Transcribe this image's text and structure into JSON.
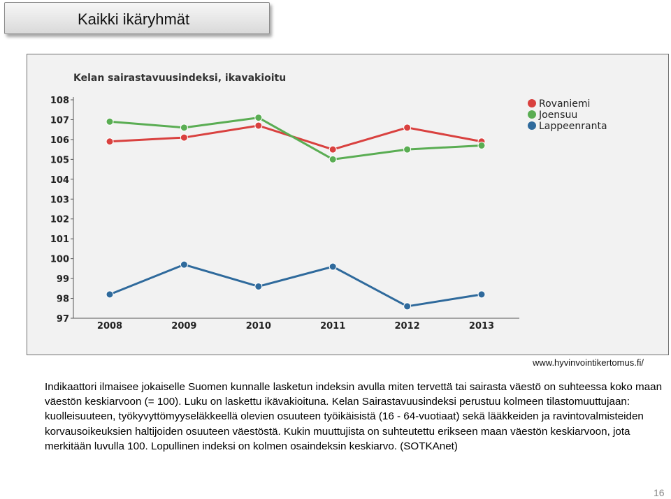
{
  "slide": {
    "title": "Kaikki ikäryhmät",
    "source": "www.hyvinvointikertomus.fi/",
    "description": "Indikaattori ilmaisee jokaiselle Suomen kunnalle lasketun indeksin avulla miten tervettä tai sairasta väestö on suhteessa koko maan väestön keskiarvoon (= 100). Luku on laskettu ikävakioituna. Kelan Sairastavuusindeksi perustuu kolmeen tilastomuuttujaan: kuolleisuuteen, työkyvyttömyyseläkkeellä olevien osuuteen työikäisistä (16 - 64-vuotiaat) sekä lääkkeiden ja ravintovalmisteiden korvausoikeuksien haltijoiden osuuteen väestöstä. Kukin muuttujista on suhteutettu erikseen maan väestön keskiarvoon, jota merkitään luvulla 100. Lopullinen indeksi on kolmen osaindeksin keskiarvo. (SOTKAnet)",
    "page_number": "16"
  },
  "chart_data": {
    "type": "line",
    "title": "Kelan sairastavuusindeksi, ikavakioitu",
    "xlabel": "",
    "ylabel": "",
    "categories": [
      "2008",
      "2009",
      "2010",
      "2011",
      "2012",
      "2013"
    ],
    "ylim": [
      97,
      108
    ],
    "yticks": [
      "97",
      "98",
      "99",
      "100",
      "101",
      "102",
      "103",
      "104",
      "105",
      "106",
      "107",
      "108"
    ],
    "grid": false,
    "legend_position": "top-right",
    "series": [
      {
        "name": "Rovaniemi",
        "color": "#d9413f",
        "values": [
          105.9,
          106.1,
          106.7,
          105.5,
          106.6,
          105.9
        ]
      },
      {
        "name": "Joensuu",
        "color": "#5aad53",
        "values": [
          106.9,
          106.6,
          107.1,
          105.0,
          105.5,
          105.7
        ]
      },
      {
        "name": "Lappeenranta",
        "color": "#2f6a9c",
        "values": [
          98.2,
          99.7,
          98.6,
          99.6,
          97.6,
          98.2
        ]
      }
    ]
  }
}
